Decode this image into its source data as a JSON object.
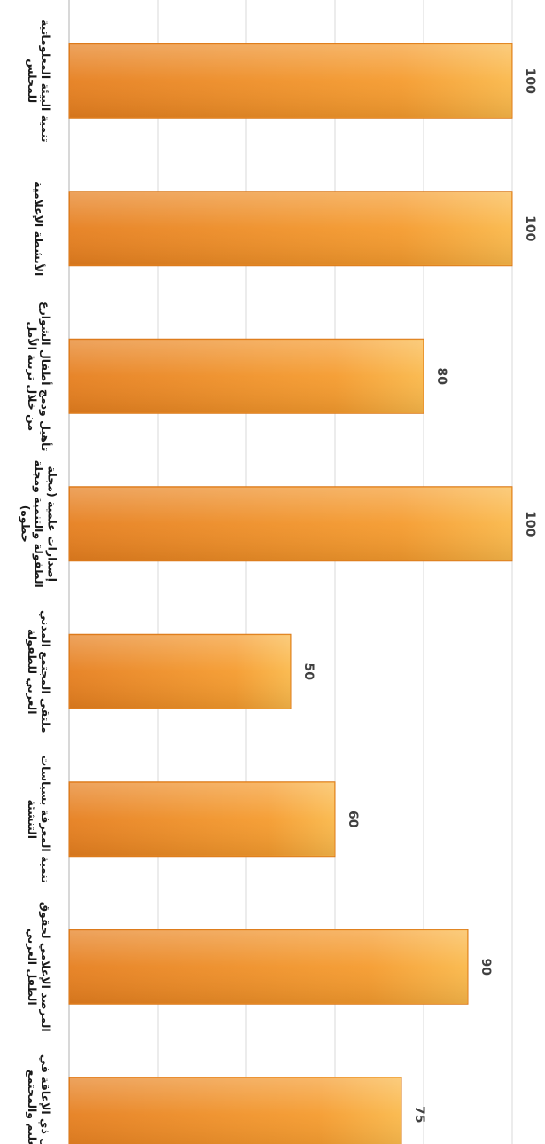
{
  "chart_data": {
    "type": "bar",
    "orientation": "horizontal",
    "categories": [
      [
        "تنمية البيئة المعلوماتية",
        "للمجلس"
      ],
      [
        "الأنشطة الإعلامية"
      ],
      [
        "تأهيل ودمج أطفال الشوارع",
        "من خلال تربية الأمل"
      ],
      [
        "إصدارات علمية (مجلة",
        "الطفولة والتنمية ومجلة",
        "خطوة)"
      ],
      [
        "ملتقى المجتمع المدني",
        "العربي للطفولة"
      ],
      [
        "تنمية المعرفة بسياسات",
        "التنشئة"
      ],
      [
        "المرصد الإعلامي لحقوق",
        "الطفل العربي"
      ],
      [
        "الطفل ذي الإعاقة في",
        "التعليم والمجتمع"
      ]
    ],
    "values": [
      100,
      100,
      80,
      100,
      50,
      60,
      90,
      75
    ],
    "data_labels": [
      "100",
      "100",
      "80",
      "100",
      "50",
      "60",
      "90",
      "75"
    ],
    "xlim": [
      0,
      100
    ],
    "grid": true,
    "colors": {
      "bar_fill": "#f6a02e",
      "bar_edge": "#d9781a",
      "grid": "#d9d9d9",
      "axis": "#bfbfbf"
    }
  }
}
